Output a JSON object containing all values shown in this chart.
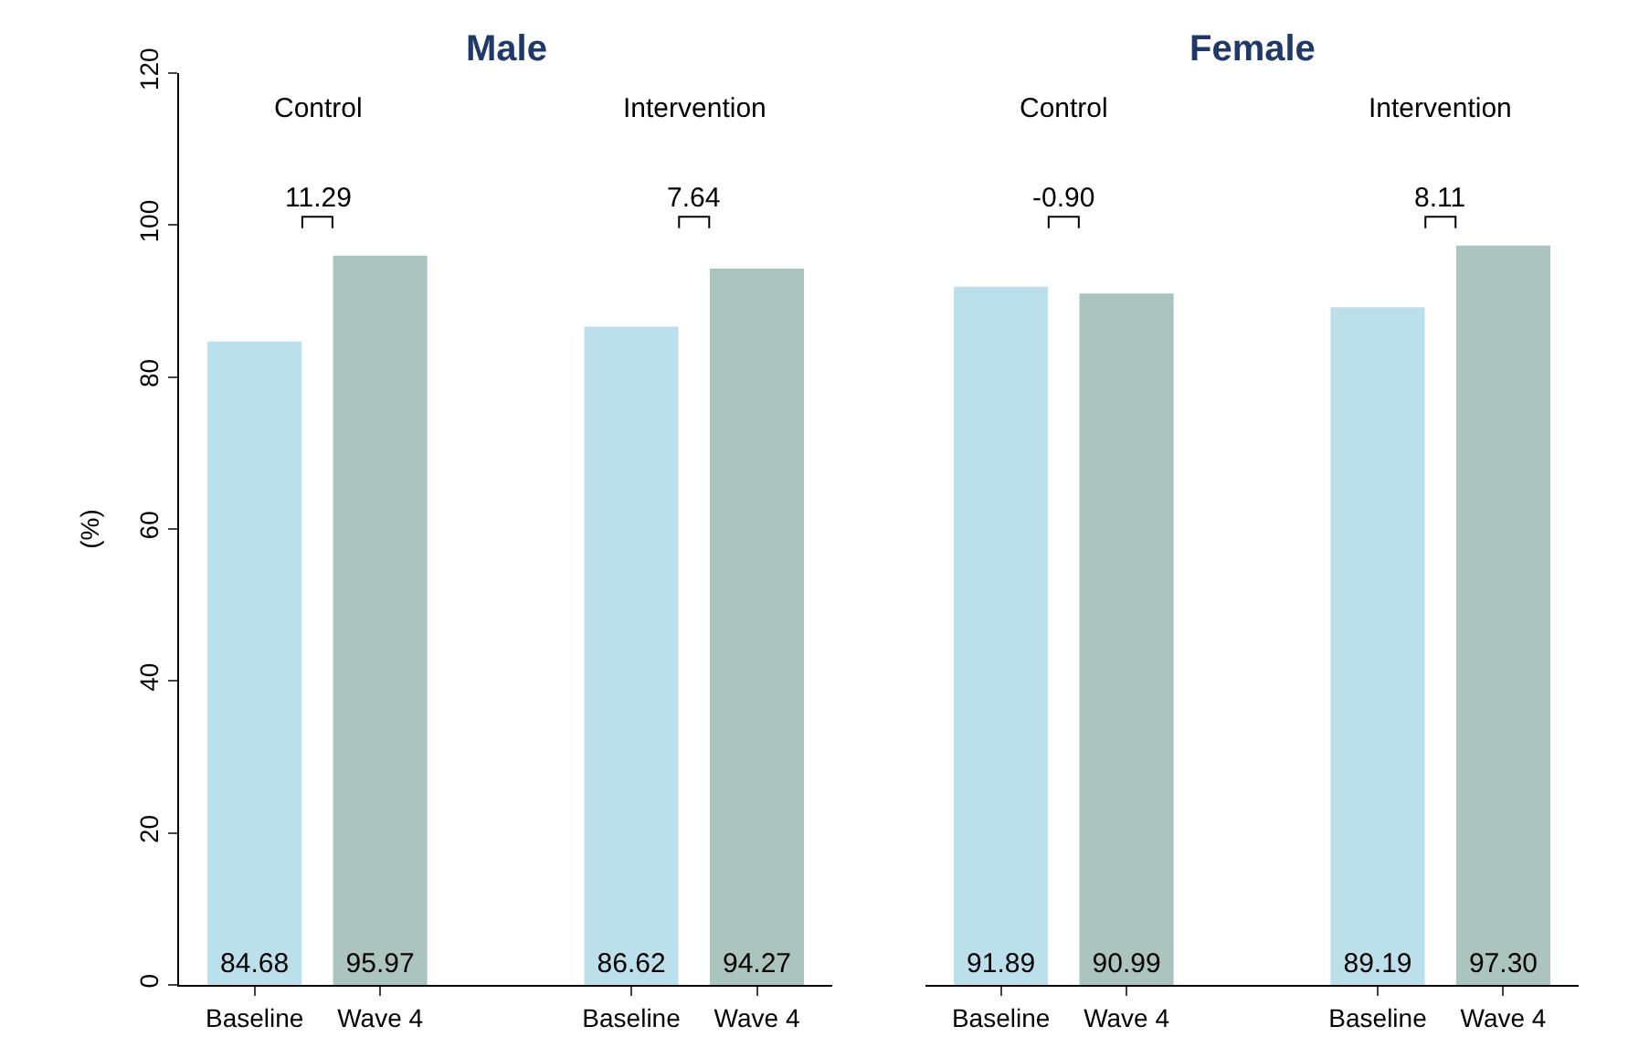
{
  "chart_data": [
    {
      "type": "bar",
      "title": "Male",
      "ylabel": "(%)",
      "categories": [
        "Baseline",
        "Wave 4",
        "Baseline",
        "Wave 4"
      ],
      "values": [
        84.68,
        95.97,
        86.62,
        94.27
      ],
      "colors": [
        "#bce0eb",
        "#abc4bf",
        "#bce0eb",
        "#abc4bf"
      ],
      "value_labels": [
        "84.68",
        "95.97",
        "86.62",
        "94.27"
      ],
      "ylim": [
        0,
        120
      ],
      "yticks": [
        0,
        20,
        40,
        60,
        80,
        100,
        120
      ],
      "annotations": [
        "Control",
        "11.29",
        "Intervention",
        "7.64"
      ]
    },
    {
      "type": "bar",
      "title": "Female",
      "categories": [
        "Baseline",
        "Wave 4",
        "Baseline",
        "Wave 4"
      ],
      "values": [
        91.89,
        90.99,
        89.19,
        97.3
      ],
      "colors": [
        "#bce0eb",
        "#abc4bf",
        "#bce0eb",
        "#abc4bf"
      ],
      "value_labels": [
        "91.89",
        "90.99",
        "89.19",
        "97.30"
      ],
      "ylim": [
        0,
        120
      ],
      "yticks": [
        0,
        20,
        40,
        60,
        80,
        100,
        120
      ],
      "tick_labels": "x",
      "annotations": [
        "Control",
        "-0.90",
        "Intervention",
        "8.11"
      ]
    }
  ]
}
